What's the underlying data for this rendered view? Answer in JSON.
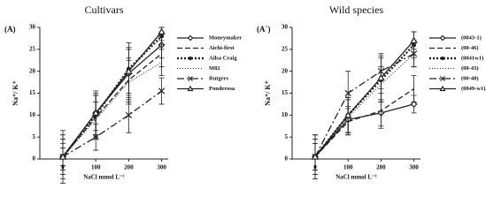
{
  "chart_data": [
    {
      "type": "line",
      "title": "Cultivars",
      "panel_label": "(A)",
      "y_label": "Na⁺/ K⁺",
      "x_label": "NaCl mmol L⁻¹",
      "x": [
        0,
        100,
        200,
        300
      ],
      "xlim": [
        -70,
        320
      ],
      "xticks": [
        0,
        100,
        200,
        300
      ],
      "ylim": [
        0,
        30
      ],
      "yticks": [
        0,
        5,
        10,
        15,
        20,
        25,
        30
      ],
      "series": [
        {
          "name": "Moneymaker",
          "color": "#222222",
          "dash": "solid",
          "marker": "diamond",
          "values": [
            0.5,
            10.5,
            19.5,
            26
          ],
          "errors": [
            5,
            5,
            6,
            3
          ]
        },
        {
          "name": "Aichi-first",
          "color": "#222222",
          "dash": "dashed",
          "marker": "none",
          "values": [
            0.5,
            9.5,
            18,
            24
          ],
          "errors": [
            4,
            5,
            5,
            3
          ]
        },
        {
          "name": "Ailsa Craig",
          "color": "#222222",
          "dash": "dotted",
          "marker": "circle",
          "values": [
            0.5,
            10,
            20.5,
            28
          ],
          "errors": [
            6,
            5,
            6,
            2
          ]
        },
        {
          "name": "M82",
          "color": "#222222",
          "dash": "thin-dotted",
          "marker": "none",
          "values": [
            0.5,
            9,
            17.5,
            22
          ],
          "errors": [
            3,
            4,
            5,
            3
          ]
        },
        {
          "name": "Rutgers",
          "color": "#222222",
          "dash": "dashdot",
          "marker": "x",
          "values": [
            0.5,
            5,
            10,
            15.5
          ],
          "errors": [
            2,
            3,
            4,
            3
          ]
        },
        {
          "name": "Ponderosa",
          "color": "#222222",
          "dash": "solid",
          "marker": "triangle",
          "values": [
            0.5,
            10.5,
            20,
            29
          ],
          "errors": [
            4,
            4,
            5,
            1
          ]
        }
      ]
    },
    {
      "type": "line",
      "title": "Wild species",
      "panel_label": "(A`)",
      "y_label": "Na⁺/ K⁺",
      "x_label": "NaCl mmol L⁻¹",
      "x": [
        0,
        100,
        200,
        300
      ],
      "xlim": [
        -70,
        320
      ],
      "xticks": [
        0,
        100,
        200,
        300
      ],
      "ylim": [
        0,
        30
      ],
      "yticks": [
        0,
        5,
        10,
        15,
        20,
        25,
        30
      ],
      "series": [
        {
          "name": "(0043-1)",
          "color": "#222222",
          "dash": "solid",
          "marker": "diamond",
          "values": [
            0.5,
            9,
            10.5,
            12.5
          ],
          "errors": [
            4,
            3,
            3,
            2
          ]
        },
        {
          "name": "(00-46)",
          "color": "#222222",
          "dash": "dashed",
          "marker": "none",
          "values": [
            0.5,
            8.5,
            11,
            16
          ],
          "errors": [
            3,
            3,
            4,
            3
          ]
        },
        {
          "name": "(0041w1)",
          "color": "#222222",
          "dash": "dotted",
          "marker": "circle",
          "values": [
            0.5,
            10,
            18,
            26
          ],
          "errors": [
            5,
            4,
            5,
            3
          ]
        },
        {
          "name": "(00-43)",
          "color": "#222222",
          "dash": "thin-dotted",
          "marker": "none",
          "values": [
            0.5,
            9.5,
            17,
            24
          ],
          "errors": [
            3,
            4,
            4,
            3
          ]
        },
        {
          "name": "(00-48)",
          "color": "#222222",
          "dash": "dashdot",
          "marker": "x",
          "values": [
            0.5,
            15,
            20,
            24
          ],
          "errors": [
            4,
            5,
            4,
            3
          ]
        },
        {
          "name": "(0049-w1)",
          "color": "#222222",
          "dash": "solid",
          "marker": "triangle",
          "values": [
            0.5,
            10,
            18.5,
            27
          ],
          "errors": [
            5,
            4,
            5,
            2
          ]
        }
      ]
    }
  ]
}
